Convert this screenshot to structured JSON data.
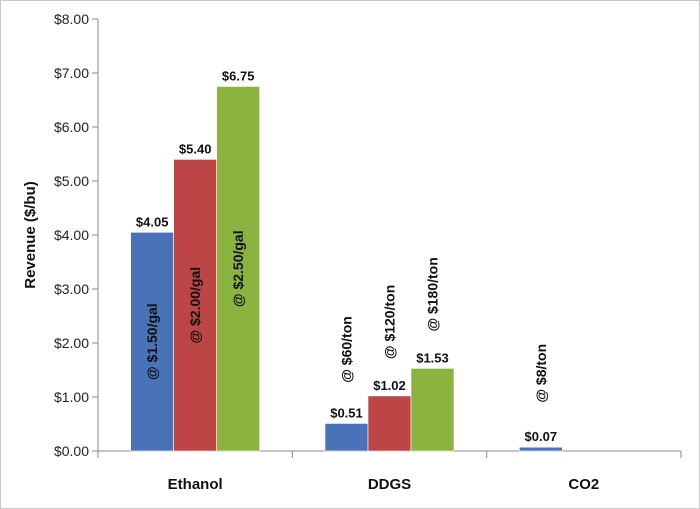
{
  "chart_data": {
    "type": "bar",
    "title": "",
    "xlabel": "",
    "ylabel": "Revenue ($/bu)",
    "ylim": [
      0,
      8
    ],
    "yticks": [
      0,
      1,
      2,
      3,
      4,
      5,
      6,
      7,
      8
    ],
    "ytick_labels": [
      "$0.00",
      "$1.00",
      "$2.00",
      "$3.00",
      "$4.00",
      "$5.00",
      "$6.00",
      "$7.00",
      "$8.00"
    ],
    "grid": false,
    "legend": "none",
    "categories": [
      "Ethanol",
      "DDGS",
      "CO2"
    ],
    "series": [
      {
        "color": "#4a72b8",
        "values": [
          4.05,
          0.51,
          0.07
        ],
        "value_labels": [
          "$4.05",
          "$0.51",
          "$0.07"
        ],
        "price_labels": [
          "@ $1.50/gal",
          "@ $60/ton",
          "@ $8/ton"
        ]
      },
      {
        "color": "#bd4545",
        "values": [
          5.4,
          1.02,
          null
        ],
        "value_labels": [
          "$5.40",
          "$1.02",
          null
        ],
        "price_labels": [
          "@ $2.00/gal",
          "@ $120/ton",
          null
        ]
      },
      {
        "color": "#8bb43e",
        "values": [
          6.75,
          1.53,
          null
        ],
        "value_labels": [
          "$6.75",
          "$1.53",
          null
        ],
        "price_labels": [
          "@ $2.50/gal",
          "@ $180/ton",
          null
        ]
      }
    ]
  }
}
